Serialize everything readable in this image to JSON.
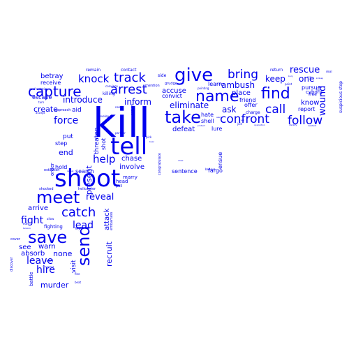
{
  "color": "#0000ee",
  "words": [
    {
      "text": "kill",
      "size": 58
    },
    {
      "text": "shoot",
      "size": 34
    },
    {
      "text": "tell",
      "size": 34
    },
    {
      "text": "give",
      "size": 26
    },
    {
      "text": "take",
      "size": 24
    },
    {
      "text": "meet",
      "size": 24
    },
    {
      "text": "send",
      "size": 24
    },
    {
      "text": "save",
      "size": 24
    },
    {
      "text": "find",
      "size": 22
    },
    {
      "text": "name",
      "size": 22
    },
    {
      "text": "capture",
      "size": 20
    },
    {
      "text": "track",
      "size": 18
    },
    {
      "text": "arrest",
      "size": 18
    },
    {
      "text": "catch",
      "size": 18
    },
    {
      "text": "confront",
      "size": 17
    },
    {
      "text": "follow",
      "size": 17
    },
    {
      "text": "bring",
      "size": 17
    },
    {
      "text": "call",
      "size": 17
    },
    {
      "text": "knock",
      "size": 15
    },
    {
      "text": "help",
      "size": 15
    },
    {
      "text": "force",
      "size": 14
    },
    {
      "text": "leave",
      "size": 14
    },
    {
      "text": "fight",
      "size": 14
    },
    {
      "text": "lead",
      "size": 14
    },
    {
      "text": "hire",
      "size": 14
    },
    {
      "text": "rescue",
      "size": 13
    },
    {
      "text": "wound",
      "size": 13
    },
    {
      "text": "reveal",
      "size": 13
    },
    {
      "text": "ambush",
      "size": 12
    },
    {
      "text": "inform",
      "size": 12
    },
    {
      "text": "eliminate",
      "size": 12
    },
    {
      "text": "keep",
      "size": 12
    },
    {
      "text": "one",
      "size": 12
    },
    {
      "text": "ask",
      "size": 12
    },
    {
      "text": "introduce",
      "size": 12
    },
    {
      "text": "create",
      "size": 11
    },
    {
      "text": "end",
      "size": 11
    },
    {
      "text": "murder",
      "size": 11
    },
    {
      "text": "none",
      "size": 11
    },
    {
      "text": "present",
      "size": 11
    },
    {
      "text": "recruit",
      "size": 11
    },
    {
      "text": "accuse",
      "size": 10
    },
    {
      "text": "place",
      "size": 10
    },
    {
      "text": "know",
      "size": 10
    },
    {
      "text": "betray",
      "size": 10
    },
    {
      "text": "defeat",
      "size": 10
    },
    {
      "text": "chase",
      "size": 10
    },
    {
      "text": "involve",
      "size": 10
    },
    {
      "text": "attack",
      "size": 10
    },
    {
      "text": "arrive",
      "size": 10
    },
    {
      "text": "see",
      "size": 10
    },
    {
      "text": "warn",
      "size": 10
    },
    {
      "text": "absorb",
      "size": 10
    },
    {
      "text": "visit",
      "size": 9
    },
    {
      "text": "threaten",
      "size": 9
    },
    {
      "text": "put",
      "size": 9
    },
    {
      "text": "aid",
      "size": 9
    },
    {
      "text": "receive",
      "size": 8
    },
    {
      "text": "convict",
      "size": 8
    },
    {
      "text": "learn",
      "size": 8
    },
    {
      "text": "friend",
      "size": 8
    },
    {
      "text": "pursue",
      "size": 8
    },
    {
      "text": "report",
      "size": 8
    },
    {
      "text": "lure",
      "size": 8
    },
    {
      "text": "hate",
      "size": 8
    },
    {
      "text": "shell",
      "size": 8
    },
    {
      "text": "offer",
      "size": 8
    },
    {
      "text": "escape",
      "size": 8
    },
    {
      "text": "hold",
      "size": 8
    },
    {
      "text": "search",
      "size": 8
    },
    {
      "text": "step",
      "size": 8
    },
    {
      "text": "sentence",
      "size": 8
    },
    {
      "text": "ensue",
      "size": 8
    },
    {
      "text": "fargo",
      "size": 8
    },
    {
      "text": "shot",
      "size": 8
    },
    {
      "text": "marry",
      "size": 7
    },
    {
      "text": "head",
      "size": 7
    },
    {
      "text": "fighting",
      "size": 7
    },
    {
      "text": "order",
      "size": 7
    },
    {
      "text": "battle",
      "size": 7
    },
    {
      "text": "cyborg",
      "size": 7
    },
    {
      "text": "free",
      "size": 6
    },
    {
      "text": "charge",
      "size": 6
    },
    {
      "text": "suspicious stop",
      "size": 6
    },
    {
      "text": "remain",
      "size": 6
    },
    {
      "text": "contact",
      "size": 6
    },
    {
      "text": "side",
      "size": 6
    },
    {
      "text": "return",
      "size": 6
    },
    {
      "text": "killing",
      "size": 6
    },
    {
      "text": "approach",
      "size": 5
    },
    {
      "text": "embarrass",
      "size": 5
    },
    {
      "text": "pull",
      "size": 5
    },
    {
      "text": "shocked",
      "size": 5
    },
    {
      "text": "helicopter",
      "size": 5
    },
    {
      "text": "establish",
      "size": 5
    },
    {
      "text": "run",
      "size": 5
    },
    {
      "text": "try",
      "size": 5
    },
    {
      "text": "discover",
      "size": 5
    },
    {
      "text": "cover",
      "size": 5
    },
    {
      "text": "congratulate",
      "size": 5
    },
    {
      "text": "grudge",
      "size": 5
    },
    {
      "text": "mention",
      "size": 5
    },
    {
      "text": "assign",
      "size": 5
    },
    {
      "text": "turn",
      "size": 4
    },
    {
      "text": "partner",
      "size": 4
    },
    {
      "text": "need",
      "size": 4
    },
    {
      "text": "confrontation",
      "size": 4
    },
    {
      "text": "join",
      "size": 4
    },
    {
      "text": "allow",
      "size": 4
    },
    {
      "text": "award",
      "size": 4
    },
    {
      "text": "beat",
      "size": 4
    },
    {
      "text": "flee",
      "size": 4
    },
    {
      "text": "accept",
      "size": 4
    },
    {
      "text": "point",
      "size": 4
    },
    {
      "text": "develop",
      "size": 4
    },
    {
      "text": "convince",
      "size": 4
    },
    {
      "text": "pick",
      "size": 4
    },
    {
      "text": "pointing",
      "size": 4
    },
    {
      "text": "believe",
      "size": 4
    },
    {
      "text": "deal",
      "size": 4
    },
    {
      "text": "tension",
      "size": 3
    },
    {
      "text": "apprehend",
      "size": 3
    },
    {
      "text": "reveal",
      "size": 3
    },
    {
      "text": "opposition",
      "size": 3
    },
    {
      "text": "resident",
      "size": 3
    },
    {
      "text": "identify",
      "size": 3
    },
    {
      "text": "alert",
      "size": 3
    },
    {
      "text": "protect",
      "size": 3
    },
    {
      "text": "bury",
      "size": 3
    },
    {
      "text": "kidnap",
      "size": 3
    },
    {
      "text": "ask",
      "size": 3
    },
    {
      "text": "gun",
      "size": 3
    },
    {
      "text": "suspect",
      "size": 3
    },
    {
      "text": "fire",
      "size": 3
    },
    {
      "text": "bear",
      "size": 3
    },
    {
      "text": "draw",
      "size": 3
    }
  ]
}
